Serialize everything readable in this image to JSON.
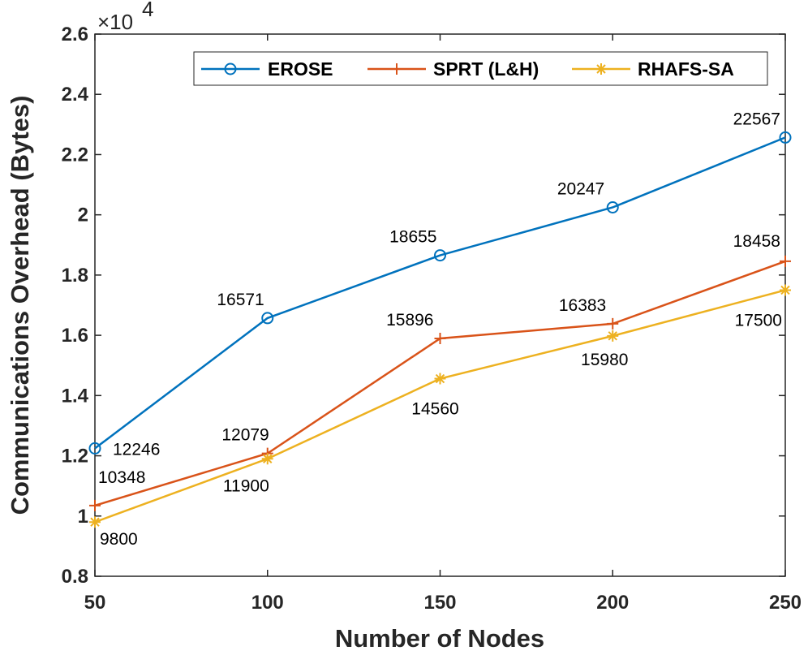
{
  "chart_data": {
    "type": "line",
    "title": "",
    "xlabel": "Number of Nodes",
    "ylabel": "Communications Overhead (Bytes)",
    "x": [
      50,
      100,
      150,
      200,
      250
    ],
    "xlim": [
      50,
      250
    ],
    "ylim": [
      0.8,
      2.6
    ],
    "y_scale_label": "×10",
    "y_scale_exponent": "4",
    "x_ticks": [
      "50",
      "100",
      "150",
      "200",
      "250"
    ],
    "y_ticks": [
      "0.8",
      "1",
      "1.2",
      "1.4",
      "1.6",
      "1.8",
      "2",
      "2.2",
      "2.4",
      "2.6"
    ],
    "y_tick_values": [
      0.8,
      1.0,
      1.2,
      1.4,
      1.6,
      1.8,
      2.0,
      2.2,
      2.4,
      2.6
    ],
    "legend_position": "top-right",
    "series": [
      {
        "name": "EROSE",
        "color": "#0072BD",
        "marker": "circle",
        "values": [
          12246,
          16571,
          18655,
          20247,
          22567
        ],
        "labels": [
          "12246",
          "16571",
          "18655",
          "20247",
          "22567"
        ]
      },
      {
        "name": "SPRT (L&H)",
        "color": "#D95319",
        "marker": "plus",
        "values": [
          10348,
          12079,
          15896,
          16383,
          18458
        ],
        "labels": [
          "10348",
          "12079",
          "15896",
          "16383",
          "18458"
        ]
      },
      {
        "name": "RHAFS-SA",
        "color": "#EDB120",
        "marker": "asterisk",
        "values": [
          9800,
          11900,
          14560,
          15980,
          17500
        ],
        "labels": [
          "9800",
          "11900",
          "14560",
          "15980",
          "17500"
        ]
      }
    ]
  }
}
